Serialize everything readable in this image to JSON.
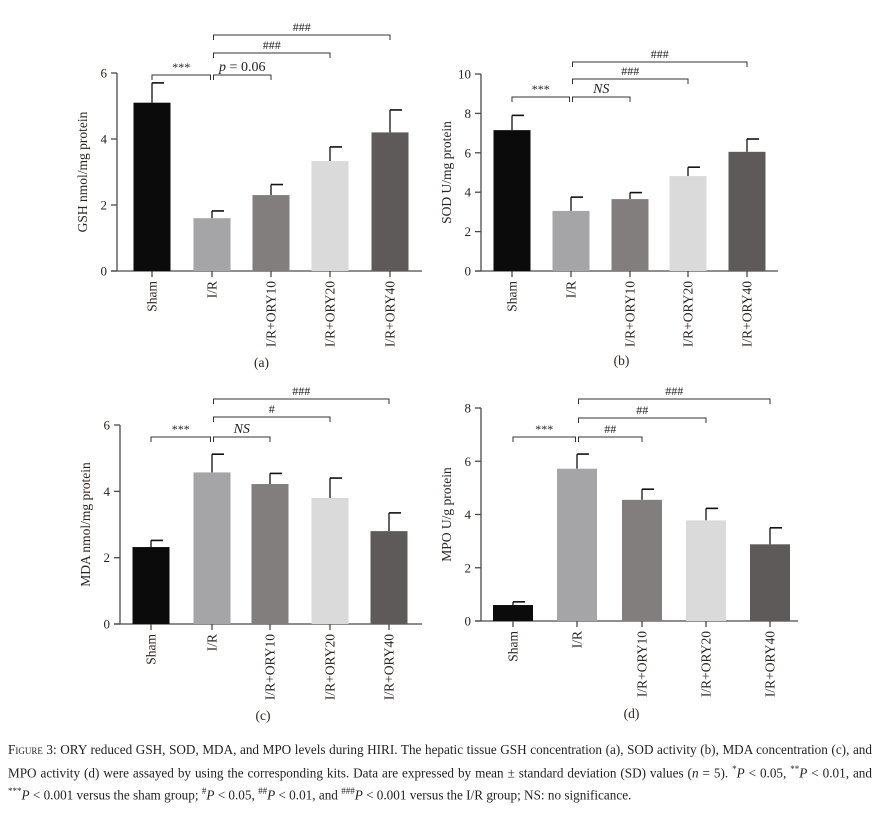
{
  "chart_data": [
    {
      "type": "bar",
      "panel_label": "(a)",
      "ylabel": "GSH nmol/mg protein",
      "xlabel": "",
      "ylim": [
        0,
        6
      ],
      "yticks": [
        0,
        2,
        4,
        6
      ],
      "categories": [
        "Sham",
        "I/R",
        "I/R+ORY10",
        "I/R+ORY20",
        "I/R+ORY40"
      ],
      "values": [
        5.1,
        1.6,
        2.3,
        3.33,
        4.2
      ],
      "errors": [
        0.6,
        0.22,
        0.32,
        0.43,
        0.68
      ],
      "comparisons": [
        {
          "from": 0,
          "to": 1,
          "label": "***",
          "italic": false
        },
        {
          "from": 1,
          "to": 2,
          "label": "p = 0.06",
          "italic": true
        },
        {
          "from": 1,
          "to": 3,
          "label": "###",
          "italic": false
        },
        {
          "from": 1,
          "to": 4,
          "label": "###",
          "italic": false
        }
      ]
    },
    {
      "type": "bar",
      "panel_label": "(b)",
      "ylabel": "SOD U/mg protein",
      "xlabel": "",
      "ylim": [
        0,
        10
      ],
      "yticks": [
        0,
        2,
        4,
        6,
        8,
        10
      ],
      "categories": [
        "Sham",
        "I/R",
        "I/R+ORY10",
        "I/R+ORY20",
        "I/R+ORY40"
      ],
      "values": [
        7.15,
        3.05,
        3.65,
        4.82,
        6.05
      ],
      "errors": [
        0.75,
        0.7,
        0.33,
        0.45,
        0.65
      ],
      "comparisons": [
        {
          "from": 0,
          "to": 1,
          "label": "***",
          "italic": false
        },
        {
          "from": 1,
          "to": 2,
          "label": "NS",
          "italic": true
        },
        {
          "from": 1,
          "to": 3,
          "label": "###",
          "italic": false
        },
        {
          "from": 1,
          "to": 4,
          "label": "###",
          "italic": false
        }
      ]
    },
    {
      "type": "bar",
      "panel_label": "(c)",
      "ylabel": "MDA nmol/mg protein",
      "xlabel": "",
      "ylim": [
        0,
        6
      ],
      "yticks": [
        0,
        2,
        4,
        6
      ],
      "categories": [
        "Sham",
        "I/R",
        "I/R+ORY10",
        "I/R+ORY20",
        "I/R+ORY40"
      ],
      "values": [
        2.32,
        4.57,
        4.22,
        3.8,
        2.8
      ],
      "errors": [
        0.2,
        0.55,
        0.32,
        0.6,
        0.55
      ],
      "comparisons": [
        {
          "from": 0,
          "to": 1,
          "label": "***",
          "italic": false
        },
        {
          "from": 1,
          "to": 2,
          "label": "NS",
          "italic": true
        },
        {
          "from": 1,
          "to": 3,
          "label": "#",
          "italic": false
        },
        {
          "from": 1,
          "to": 4,
          "label": "###",
          "italic": false
        }
      ]
    },
    {
      "type": "bar",
      "panel_label": "(d)",
      "ylabel": "MPO U/g protein",
      "xlabel": "",
      "ylim": [
        0,
        8
      ],
      "yticks": [
        0,
        2,
        4,
        6,
        8
      ],
      "categories": [
        "Sham",
        "I/R",
        "I/R+ORY10",
        "I/R+ORY20",
        "I/R+ORY40"
      ],
      "values": [
        0.6,
        5.72,
        4.55,
        3.78,
        2.88
      ],
      "errors": [
        0.12,
        0.55,
        0.4,
        0.45,
        0.62
      ],
      "comparisons": [
        {
          "from": 0,
          "to": 1,
          "label": "***",
          "italic": false
        },
        {
          "from": 1,
          "to": 2,
          "label": "##",
          "italic": false
        },
        {
          "from": 1,
          "to": 3,
          "label": "##",
          "italic": false
        },
        {
          "from": 1,
          "to": 4,
          "label": "###",
          "italic": false
        }
      ]
    }
  ],
  "colors": {
    "bars": [
      "#0b0b0b",
      "#a5a4a6",
      "#827e7e",
      "#dadada",
      "#5f5a5a"
    ],
    "axis": "#4a4a4a",
    "text": "#2b2320"
  },
  "caption": [
    {
      "t": "Figure 3:",
      "cls": "fig-label"
    },
    {
      "t": " ORY reduced GSH, SOD, MDA, and MPO levels during HIRI. The hepatic tissue GSH concentration (a), SOD activity (b), MDA concentration (c), and MPO activity (d) were assayed by using the corresponding kits. Data are expressed by mean ± standard deviation (SD) values ("
    },
    {
      "t": "n",
      "it": true
    },
    {
      "t": " = 5). "
    },
    {
      "t": "*",
      "sup": true
    },
    {
      "t": "P",
      "it": true
    },
    {
      "t": " < 0.05, "
    },
    {
      "t": "**",
      "sup": true
    },
    {
      "t": "P",
      "it": true
    },
    {
      "t": " < 0.01, and "
    },
    {
      "t": "***",
      "sup": true
    },
    {
      "t": "P",
      "it": true
    },
    {
      "t": " < 0.001 versus the sham group; "
    },
    {
      "t": "#",
      "sup": true
    },
    {
      "t": "P",
      "it": true
    },
    {
      "t": " < 0.05, "
    },
    {
      "t": "##",
      "sup": true
    },
    {
      "t": "P",
      "it": true
    },
    {
      "t": " < 0.01, and "
    },
    {
      "t": "###",
      "sup": true
    },
    {
      "t": "P",
      "it": true
    },
    {
      "t": " < 0.001 versus the I/R group; NS: no significance."
    }
  ]
}
